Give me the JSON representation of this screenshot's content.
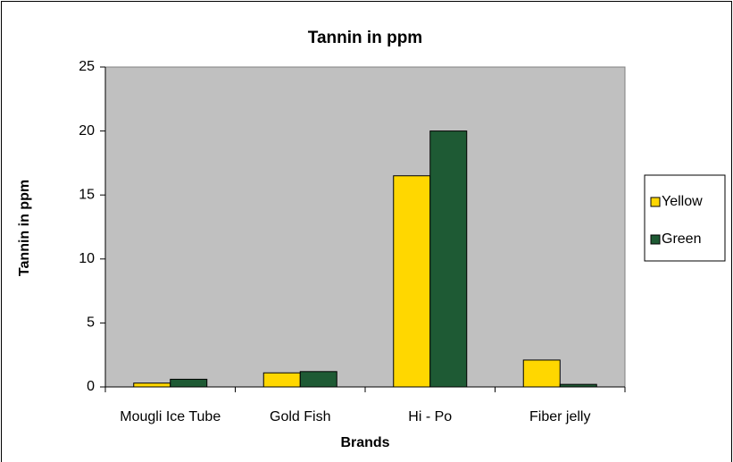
{
  "chart_data": {
    "type": "bar",
    "title": "Tannin in ppm",
    "x_label": "Brands",
    "y_label": "Tannin in ppm",
    "categories": [
      "Mougli Ice Tube",
      "Gold Fish",
      "Hi - Po",
      "Fiber jelly"
    ],
    "series": [
      {
        "name": "Yellow",
        "color": "#ffd700",
        "values": [
          0.3,
          1.1,
          16.5,
          2.1
        ]
      },
      {
        "name": "Green",
        "color": "#1e5a34",
        "values": [
          0.6,
          1.2,
          20,
          0.2
        ]
      }
    ],
    "ylim": [
      0,
      25
    ],
    "yticks": [
      0,
      5,
      10,
      15,
      20,
      25
    ],
    "legend": "right"
  }
}
